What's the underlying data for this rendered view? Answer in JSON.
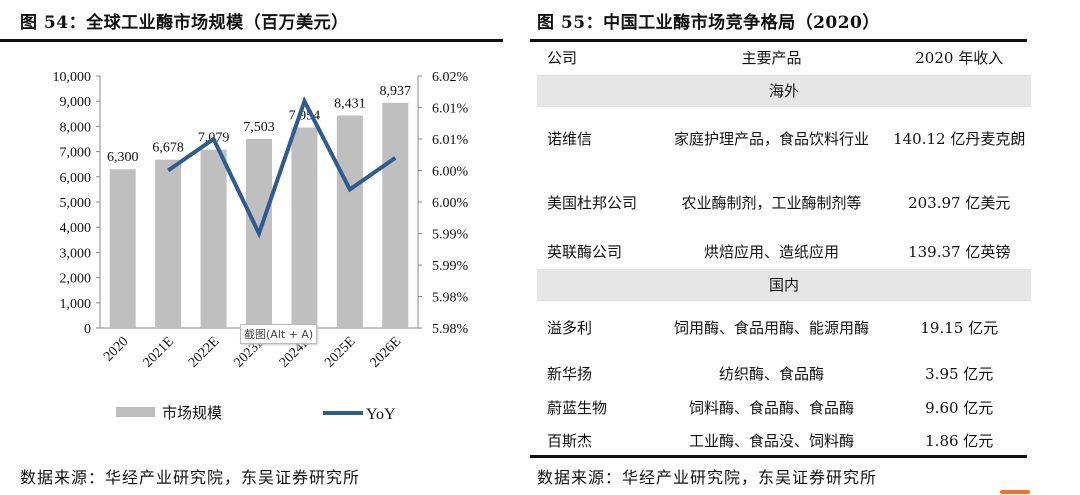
{
  "left": {
    "title": "图 54：全球工业酶市场规模（百万美元）",
    "source": "数据来源：华经产业研究院，东吴证券研究所",
    "tooltip": "截图(Alt + A)"
  },
  "chart_data": {
    "type": "bar+line",
    "title": "全球工业酶市场规模（百万美元）",
    "categories": [
      "2020",
      "2021E",
      "2022E",
      "2023E",
      "2024E",
      "2025E",
      "2026E"
    ],
    "series": [
      {
        "name": "市场规模",
        "type": "bar",
        "axis": "left",
        "values": [
          6300,
          6678,
          7079,
          7503,
          7954,
          8431,
          8937
        ],
        "labels": [
          "6,300",
          "6,678",
          "7,079",
          "7,503",
          "7,954",
          "8,431",
          "8,937"
        ],
        "color": "#bfbfbf"
      },
      {
        "name": "YoY",
        "type": "line",
        "axis": "right",
        "values": [
          null,
          6.0,
          6.005,
          5.99,
          6.011,
          5.997,
          6.002
        ],
        "color": "#305b8e"
      }
    ],
    "left_axis": {
      "range": [
        0,
        10000
      ],
      "ticks": [
        "0",
        "1,000",
        "2,000",
        "3,000",
        "4,000",
        "5,000",
        "6,000",
        "7,000",
        "8,000",
        "9,000",
        "10,000"
      ]
    },
    "right_axis": {
      "range": [
        5.975,
        6.015
      ],
      "ticks": [
        "5.98%",
        "5.98%",
        "5.99%",
        "5.99%",
        "6.00%",
        "6.00%",
        "6.01%",
        "6.01%",
        "6.02%"
      ]
    },
    "legend": "bottom",
    "grid": false
  },
  "right": {
    "title": "图 55：中国工业酶市场竞争格局（2020）",
    "source": "数据来源：华经产业研究院，东吴证券研究所",
    "headers": [
      "公司",
      "主要产品",
      "2020 年收入"
    ],
    "sections": [
      {
        "name": "海外",
        "rows": [
          [
            "诺维信",
            "家庭护理产品，食品饮料行业",
            "140.12 亿丹麦克朗"
          ],
          [
            "美国杜邦公司",
            "农业酶制剂，工业酶制剂等",
            "203.97 亿美元"
          ],
          [
            "英联酶公司",
            "烘焙应用、造纸应用",
            "139.37 亿英镑"
          ]
        ]
      },
      {
        "name": "国内",
        "rows": [
          [
            "溢多利",
            "饲用酶、食品用酶、能源用酶",
            "19.15 亿元"
          ],
          [
            "新华扬",
            "纺织酶、食品酶",
            "3.95 亿元"
          ],
          [
            "蔚蓝生物",
            "饲料酶、食品酶、食品酶",
            "9.60 亿元"
          ],
          [
            "百斯杰",
            "工业酶、食品没、饲料酶",
            "1.86 亿元"
          ]
        ]
      }
    ]
  }
}
